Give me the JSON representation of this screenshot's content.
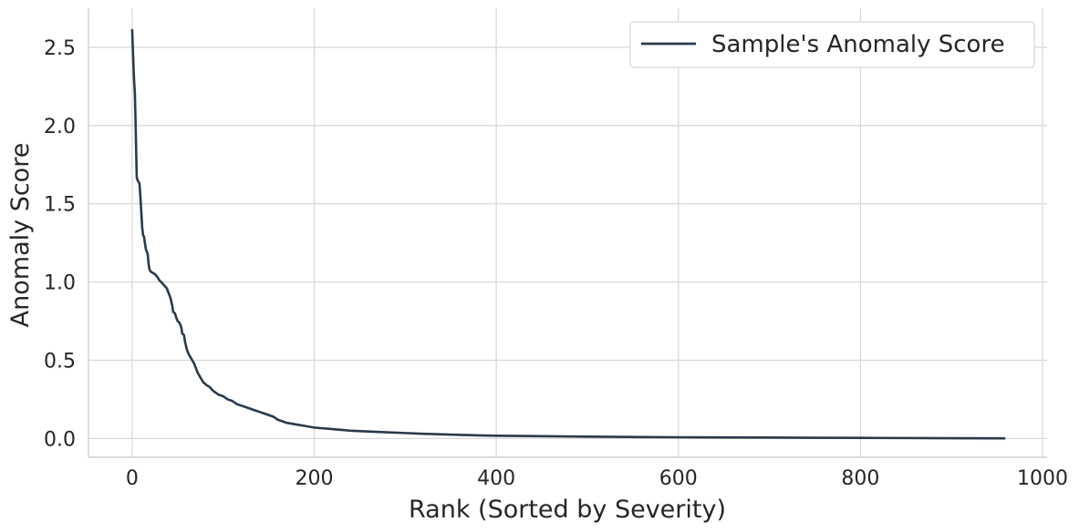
{
  "chart_data": {
    "type": "line",
    "title": "",
    "xlabel": "Rank (Sorted by Severity)",
    "ylabel": "Anomaly Score",
    "xlim": [
      -48,
      1005
    ],
    "ylim": [
      -0.12,
      2.75
    ],
    "x_ticks": [
      0,
      200,
      400,
      600,
      800,
      1000
    ],
    "x_tick_labels": [
      "0",
      "200",
      "400",
      "600",
      "800",
      "1000"
    ],
    "y_ticks": [
      0.0,
      0.5,
      1.0,
      1.5,
      2.0,
      2.5
    ],
    "y_tick_labels": [
      "0.0",
      "0.5",
      "1.0",
      "1.5",
      "2.0",
      "2.5"
    ],
    "grid": true,
    "legend_position": "top-right",
    "line_color": "#2a3a4a",
    "series": [
      {
        "name": "Sample's Anomaly Score",
        "x": [
          0,
          1,
          2,
          3,
          4,
          5,
          6,
          8,
          9,
          10,
          11,
          12,
          13,
          14,
          15,
          17,
          18,
          19,
          20,
          22,
          25,
          28,
          30,
          32,
          35,
          38,
          40,
          42,
          44,
          45,
          47,
          48,
          50,
          52,
          54,
          55,
          57,
          58,
          60,
          62,
          64,
          66,
          68,
          70,
          72,
          74,
          76,
          78,
          80,
          82,
          85,
          88,
          90,
          95,
          100,
          105,
          110,
          115,
          120,
          125,
          130,
          135,
          140,
          145,
          150,
          155,
          160,
          165,
          170,
          180,
          190,
          200,
          220,
          240,
          260,
          280,
          300,
          320,
          350,
          380,
          400,
          450,
          500,
          550,
          600,
          650,
          700,
          750,
          800,
          850,
          900,
          958
        ],
        "values": [
          2.61,
          2.45,
          2.3,
          2.2,
          1.95,
          1.67,
          1.65,
          1.63,
          1.55,
          1.45,
          1.35,
          1.3,
          1.29,
          1.25,
          1.21,
          1.18,
          1.12,
          1.08,
          1.07,
          1.06,
          1.05,
          1.03,
          1.01,
          1.0,
          0.98,
          0.96,
          0.93,
          0.9,
          0.85,
          0.81,
          0.8,
          0.78,
          0.75,
          0.74,
          0.71,
          0.67,
          0.66,
          0.62,
          0.57,
          0.54,
          0.52,
          0.5,
          0.48,
          0.45,
          0.42,
          0.4,
          0.38,
          0.36,
          0.35,
          0.34,
          0.33,
          0.31,
          0.3,
          0.28,
          0.27,
          0.25,
          0.24,
          0.22,
          0.21,
          0.2,
          0.19,
          0.18,
          0.17,
          0.16,
          0.15,
          0.14,
          0.12,
          0.11,
          0.1,
          0.09,
          0.08,
          0.07,
          0.06,
          0.05,
          0.045,
          0.04,
          0.035,
          0.03,
          0.025,
          0.02,
          0.018,
          0.015,
          0.012,
          0.01,
          0.008,
          0.007,
          0.006,
          0.005,
          0.004,
          0.003,
          0.002,
          0.001
        ]
      }
    ]
  }
}
